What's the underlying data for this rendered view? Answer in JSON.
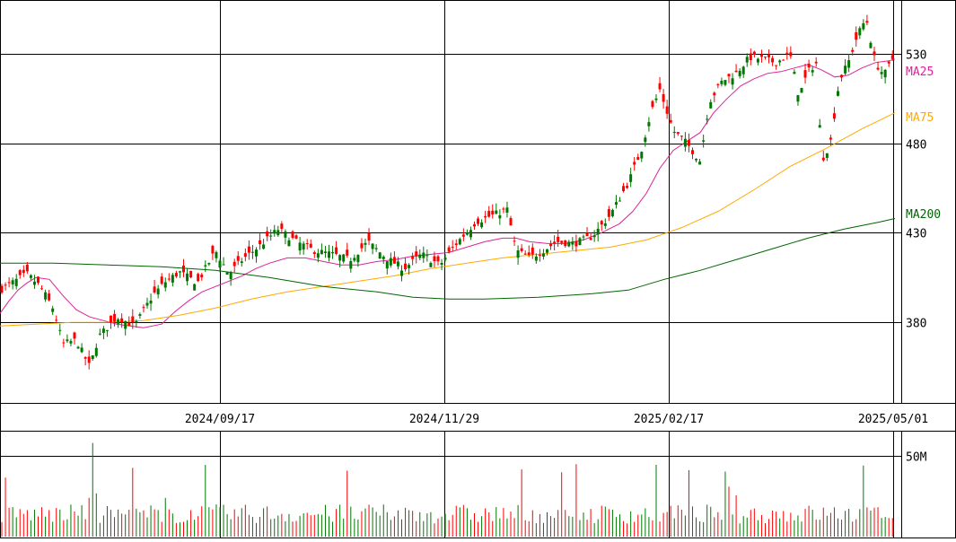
{
  "chart_data": [
    {
      "type": "candlestick",
      "title": "",
      "ylim": [
        335,
        560
      ],
      "yticks": [
        380,
        430,
        480,
        530
      ],
      "xtick_labels": [
        "2024/09/17",
        "2024/11/29",
        "2025/02/17",
        "2025/05/01"
      ],
      "up_color": "#007700",
      "down_color": "#ff0000",
      "legend": [
        {
          "name": "MA25",
          "color": "#dd2299"
        },
        {
          "name": "MA75",
          "color": "#ffaa00"
        },
        {
          "name": "MA200",
          "color": "#006600"
        }
      ],
      "series": [
        {
          "name": "MA25",
          "points": [
            [
              0,
              385
            ],
            [
              10,
              392
            ],
            [
              20,
              398
            ],
            [
              30,
              402
            ],
            [
              40,
              405
            ],
            [
              55,
              404
            ],
            [
              70,
              395
            ],
            [
              85,
              387
            ],
            [
              100,
              383
            ],
            [
              115,
              381
            ],
            [
              130,
              379
            ],
            [
              145,
              378
            ],
            [
              160,
              377
            ],
            [
              180,
              379
            ],
            [
              195,
              386
            ],
            [
              210,
              392
            ],
            [
              225,
              397
            ],
            [
              240,
              400
            ],
            [
              255,
              403
            ],
            [
              270,
              406
            ],
            [
              285,
              410
            ],
            [
              300,
              413
            ],
            [
              320,
              416
            ],
            [
              340,
              416
            ],
            [
              360,
              414
            ],
            [
              380,
              412
            ],
            [
              400,
              412
            ],
            [
              420,
              414
            ],
            [
              440,
              415
            ],
            [
              460,
              417
            ],
            [
              480,
              418
            ],
            [
              500,
              419
            ],
            [
              520,
              422
            ],
            [
              540,
              425
            ],
            [
              560,
              427
            ],
            [
              575,
              427
            ],
            [
              590,
              425
            ],
            [
              610,
              424
            ],
            [
              630,
              424
            ],
            [
              650,
              426
            ],
            [
              670,
              430
            ],
            [
              690,
              435
            ],
            [
              705,
              442
            ],
            [
              720,
              452
            ],
            [
              735,
              466
            ],
            [
              750,
              476
            ],
            [
              765,
              481
            ],
            [
              780,
              486
            ],
            [
              795,
              497
            ],
            [
              810,
              505
            ],
            [
              825,
              512
            ],
            [
              840,
              516
            ],
            [
              855,
              519
            ],
            [
              870,
              520
            ],
            [
              885,
              522
            ],
            [
              900,
              524
            ],
            [
              915,
              521
            ],
            [
              930,
              517
            ],
            [
              945,
              518
            ],
            [
              960,
              522
            ],
            [
              975,
              525
            ],
            [
              990,
              526
            ],
            [
              997,
              527
            ]
          ]
        },
        {
          "name": "MA75",
          "points": [
            [
              0,
              378
            ],
            [
              40,
              379
            ],
            [
              80,
              380
            ],
            [
              120,
              380
            ],
            [
              160,
              381
            ],
            [
              200,
              384
            ],
            [
              240,
              388
            ],
            [
              280,
              393
            ],
            [
              320,
              397
            ],
            [
              360,
              400
            ],
            [
              400,
              403
            ],
            [
              440,
              406
            ],
            [
              480,
              410
            ],
            [
              520,
              413
            ],
            [
              560,
              416
            ],
            [
              600,
              418
            ],
            [
              640,
              420
            ],
            [
              680,
              422
            ],
            [
              720,
              426
            ],
            [
              760,
              433
            ],
            [
              800,
              442
            ],
            [
              840,
              454
            ],
            [
              880,
              467
            ],
            [
              920,
              477
            ],
            [
              960,
              488
            ],
            [
              997,
              497
            ]
          ]
        },
        {
          "name": "MA200",
          "points": [
            [
              0,
              413
            ],
            [
              60,
              413
            ],
            [
              120,
              412
            ],
            [
              180,
              411
            ],
            [
              240,
              409
            ],
            [
              300,
              405
            ],
            [
              360,
              400
            ],
            [
              420,
              397
            ],
            [
              460,
              394
            ],
            [
              500,
              393
            ],
            [
              540,
              393
            ],
            [
              600,
              394
            ],
            [
              660,
              396
            ],
            [
              700,
              398
            ],
            [
              740,
              404
            ],
            [
              780,
              409
            ],
            [
              820,
              415
            ],
            [
              860,
              421
            ],
            [
              900,
              427
            ],
            [
              940,
              432
            ],
            [
              980,
              436
            ],
            [
              997,
              438
            ]
          ]
        }
      ]
    },
    {
      "type": "bar",
      "title": "",
      "ylabel_tick": "50M",
      "ytick_value": 50,
      "ylim": [
        0,
        60
      ],
      "unit": "M"
    }
  ]
}
